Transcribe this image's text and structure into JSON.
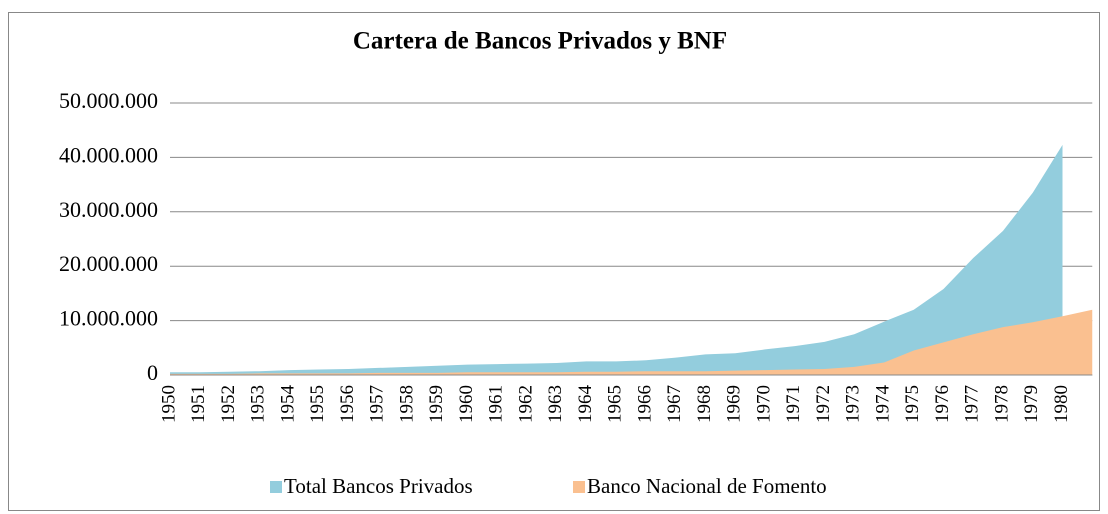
{
  "chart_data": {
    "type": "area",
    "title": "Cartera de Bancos Privados y BNF",
    "categories": [
      "1950",
      "1951",
      "1952",
      "1953",
      "1954",
      "1955",
      "1956",
      "1957",
      "1958",
      "1959",
      "1960",
      "1961",
      "1962",
      "1963",
      "1964",
      "1965",
      "1966",
      "1967",
      "1968",
      "1969",
      "1970",
      "1971",
      "1972",
      "1973",
      "1974",
      "1975",
      "1976",
      "1977",
      "1978",
      "1979",
      "1980",
      null
    ],
    "series": [
      {
        "name": "Total Bancos Privados",
        "color": "#93cddd",
        "values": [
          500000,
          500000,
          600000,
          700000,
          900000,
          1000000,
          1100000,
          1300000,
          1500000,
          1700000,
          1900000,
          2000000,
          2100000,
          2200000,
          2500000,
          2500000,
          2700000,
          3200000,
          3800000,
          4000000,
          4700000,
          5300000,
          6100000,
          7500000,
          9800000,
          12000000,
          15800000,
          21500000,
          26500000,
          33500000,
          42300000,
          null
        ]
      },
      {
        "name": "Banco Nacional de Fomento",
        "color": "#fac090",
        "values": [
          200000,
          200000,
          200000,
          300000,
          300000,
          300000,
          300000,
          400000,
          400000,
          400000,
          500000,
          500000,
          500000,
          500000,
          600000,
          600000,
          700000,
          700000,
          700000,
          800000,
          900000,
          1000000,
          1100000,
          1500000,
          2300000,
          4500000,
          6000000,
          7500000,
          8800000,
          9700000,
          10800000,
          12000000
        ]
      }
    ],
    "ylim": [
      0,
      50000000
    ],
    "yticks": [
      0,
      {
        "value": 10000000,
        "label": "10.000.000"
      },
      {
        "value": 20000000,
        "label": "20.000.000"
      },
      {
        "value": 30000000,
        "label": "30.000.000"
      },
      {
        "value": 40000000,
        "label": "40.000.000"
      },
      {
        "value": 50000000,
        "label": "50.000.000"
      }
    ],
    "grid": true,
    "legend": "bottom"
  }
}
